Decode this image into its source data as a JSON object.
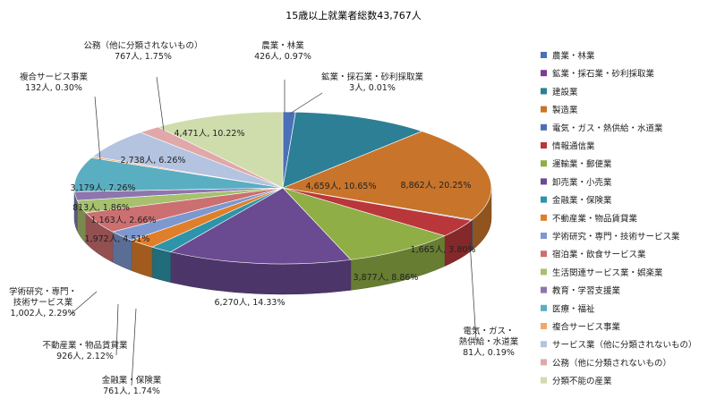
{
  "chart_data": {
    "type": "pie",
    "title": "15歳以上就業者総数43,767人",
    "categories": [
      "農業・林業",
      "鉱業・採石業・砂利採取業",
      "建設業",
      "製造業",
      "電気・ガス・熱供給・水道業",
      "情報通信業",
      "運輸業・郵便業",
      "卸売業・小売業",
      "金融業・保険業",
      "不動産業・物品賃貸業",
      "学術研究・専門・技術サービス業",
      "宿泊業・飲食サービス業",
      "生活関連サービス業・娯楽業",
      "教育・学習支援業",
      "医療・福祉",
      "複合サービス事業",
      "サービス業（他に分類されないもの）",
      "公務（他に分類されないもの）",
      "分類不能の産業"
    ],
    "values": [
      426,
      3,
      4659,
      8862,
      81,
      1665,
      3877,
      6270,
      761,
      926,
      1002,
      1972,
      1163,
      813,
      3179,
      132,
      2738,
      767,
      4471
    ],
    "percents": [
      "0.97%",
      "0.01%",
      "10.65%",
      "20.25%",
      "0.19%",
      "3.80%",
      "8.86%",
      "14.33%",
      "1.74%",
      "2.12%",
      "2.29%",
      "4.51%",
      "2.66%",
      "1.86%",
      "7.26%",
      "0.30%",
      "6.26%",
      "1.75%",
      "10.22%"
    ],
    "data_labels": [
      "426人, 0.97%",
      "3人, 0.01%",
      "4,659人, 10.65%",
      "8,862人, 20.25%",
      "81人, 0.19%",
      "1,665人, 3.80%",
      "3,877人, 8.86%",
      "6,270人, 14.33%",
      "761人, 1.74%",
      "926人, 2.12%",
      "1,002人, 2.29%",
      "1,972人, 4.51%",
      "1,163人, 2.66%",
      "813人, 1.86%",
      "3,179人, 7.26%",
      "132人, 0.30%",
      "2,738人, 6.26%",
      "767人, 1.75%",
      "4,471人, 10.22%"
    ],
    "outside_label_titles": {
      "0": [
        "農業・林業"
      ],
      "1": [
        "鉱業・採石業・砂利採取業"
      ],
      "4": [
        "電気・ガス・",
        "熱供給・水道業"
      ],
      "8": [
        "金融業・保険業"
      ],
      "9": [
        "不動産業・物品賃貸業"
      ],
      "10": [
        "学術研究・専門・",
        "技術サービス業"
      ],
      "15": [
        "複合サービス事業"
      ],
      "17": [
        "公務（他に分類されないもの）"
      ]
    },
    "colors": [
      "#4a70b8",
      "#7b3d8f",
      "#2d7f96",
      "#c8742b",
      "#4a6fb5",
      "#b9373a",
      "#8fae45",
      "#6a4a91",
      "#2e94a9",
      "#e07f2a",
      "#7d98cf",
      "#cc6f71",
      "#a6c06d",
      "#8d76ad",
      "#5aaec2",
      "#f2a86a",
      "#b4c3e0",
      "#e0a8a9",
      "#cfdcac"
    ],
    "legend_position": "right",
    "style": "3d"
  }
}
